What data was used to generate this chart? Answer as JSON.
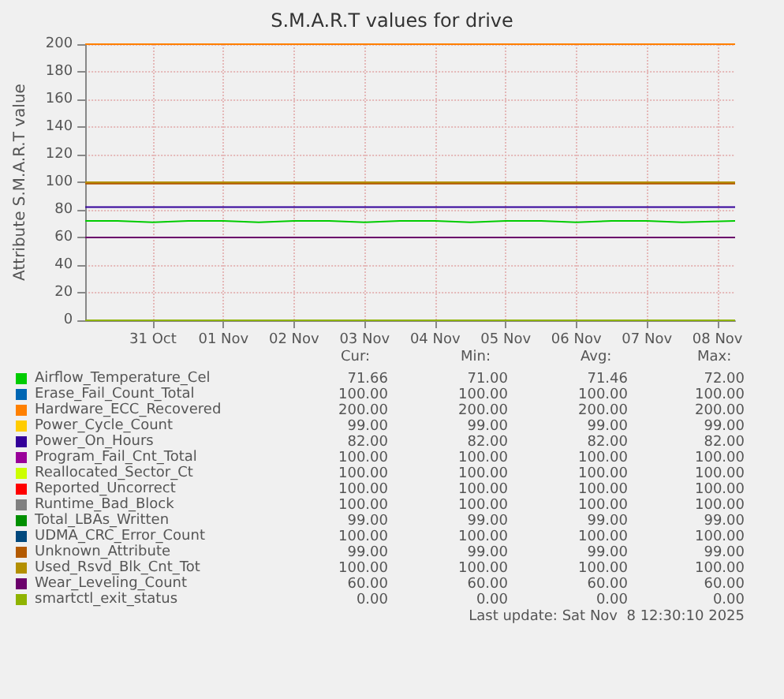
{
  "chart_data": {
    "type": "line",
    "title": "S.M.A.R.T values for drive",
    "ylabel": "Attribute S.M.A.R.T value",
    "xlim": [
      "2025-10-30T01:00",
      "2025-11-08T06:00"
    ],
    "xticks": [
      {
        "value": "2025-10-31T00:00",
        "label": "31 Oct"
      },
      {
        "value": "2025-11-01T00:00",
        "label": "01 Nov"
      },
      {
        "value": "2025-11-02T00:00",
        "label": "02 Nov"
      },
      {
        "value": "2025-11-03T00:00",
        "label": "03 Nov"
      },
      {
        "value": "2025-11-04T00:00",
        "label": "04 Nov"
      },
      {
        "value": "2025-11-05T00:00",
        "label": "05 Nov"
      },
      {
        "value": "2025-11-06T00:00",
        "label": "06 Nov"
      },
      {
        "value": "2025-11-07T00:00",
        "label": "07 Nov"
      },
      {
        "value": "2025-11-08T00:00",
        "label": "08 Nov"
      }
    ],
    "ylim": [
      0,
      200
    ],
    "yticks": [
      0,
      20,
      40,
      60,
      80,
      100,
      120,
      140,
      160,
      180,
      200
    ],
    "grid": true,
    "legend": "bottom",
    "series": [
      {
        "name": "Airflow_Temperature_Cel",
        "color": "#00cc00",
        "x": [
          "2025-10-30T01:00",
          "2025-10-30T12:00",
          "2025-10-31T00:00",
          "2025-10-31T12:00",
          "2025-11-01T00:00",
          "2025-11-01T12:00",
          "2025-11-02T00:00",
          "2025-11-02T12:00",
          "2025-11-03T00:00",
          "2025-11-03T12:00",
          "2025-11-04T00:00",
          "2025-11-04T12:00",
          "2025-11-05T00:00",
          "2025-11-05T12:00",
          "2025-11-06T00:00",
          "2025-11-06T12:00",
          "2025-11-07T00:00",
          "2025-11-07T12:00",
          "2025-11-08T06:00"
        ],
        "values": [
          72,
          72,
          71,
          72,
          72,
          71,
          72,
          72,
          71,
          72,
          72,
          71,
          72,
          72,
          71,
          72,
          72,
          71,
          72
        ]
      },
      {
        "name": "Erase_Fail_Count_Total",
        "color": "#0066b3"
      },
      {
        "name": "Hardware_ECC_Recovered",
        "color": "#ff8000",
        "x": [
          "2025-10-30T01:00",
          "2025-11-08T06:00"
        ],
        "values": [
          200,
          200
        ]
      },
      {
        "name": "Power_Cycle_Count",
        "color": "#ffcc00"
      },
      {
        "name": "Power_On_Hours",
        "color": "#330099",
        "x": [
          "2025-10-30T01:00",
          "2025-11-08T06:00"
        ],
        "values": [
          82,
          82
        ]
      },
      {
        "name": "Program_Fail_Cnt_Total",
        "color": "#990099"
      },
      {
        "name": "Reallocated_Sector_Ct",
        "color": "#ccff00"
      },
      {
        "name": "Reported_Uncorrect",
        "color": "#ff0000"
      },
      {
        "name": "Runtime_Bad_Block",
        "color": "#808080"
      },
      {
        "name": "Total_LBAs_Written",
        "color": "#008f00"
      },
      {
        "name": "UDMA_CRC_Error_Count",
        "color": "#00487d"
      },
      {
        "name": "Unknown_Attribute",
        "color": "#b35a00",
        "x": [
          "2025-10-30T01:00",
          "2025-11-08T06:00"
        ],
        "values": [
          99,
          99
        ]
      },
      {
        "name": "Used_Rsvd_Blk_Cnt_Tot",
        "color": "#b38f00",
        "x": [
          "2025-10-30T01:00",
          "2025-11-08T06:00"
        ],
        "values": [
          100,
          100
        ]
      },
      {
        "name": "Wear_Leveling_Count",
        "color": "#6b006b",
        "x": [
          "2025-10-30T01:00",
          "2025-11-08T06:00"
        ],
        "values": [
          60,
          60
        ]
      },
      {
        "name": "smartctl_exit_status",
        "color": "#8fb300",
        "x": [
          "2025-10-30T01:00",
          "2025-11-08T06:00"
        ],
        "values": [
          0,
          0
        ]
      }
    ],
    "annotations": [
      "Cur:",
      "Min:",
      "Avg:",
      "Max:",
      "71.66",
      "71.00",
      "71.46",
      "72.00",
      "100.00",
      "100.00",
      "100.00",
      "100.00",
      "200.00",
      "200.00",
      "200.00",
      "200.00",
      "99.00",
      "99.00",
      "99.00",
      "99.00",
      "82.00",
      "82.00",
      "82.00",
      "82.00",
      "100.00",
      "100.00",
      "100.00",
      "100.00",
      "100.00",
      "100.00",
      "100.00",
      "100.00",
      "100.00",
      "100.00",
      "100.00",
      "100.00",
      "100.00",
      "100.00",
      "100.00",
      "100.00",
      "99.00",
      "99.00",
      "99.00",
      "99.00",
      "100.00",
      "100.00",
      "100.00",
      "100.00",
      "99.00",
      "99.00",
      "99.00",
      "99.00",
      "100.00",
      "100.00",
      "100.00",
      "100.00",
      "60.00",
      "60.00",
      "60.00",
      "60.00",
      "0.00",
      "0.00",
      "0.00",
      "0.00",
      "Last update: Sat Nov  8 12:30:10 2025"
    ]
  }
}
